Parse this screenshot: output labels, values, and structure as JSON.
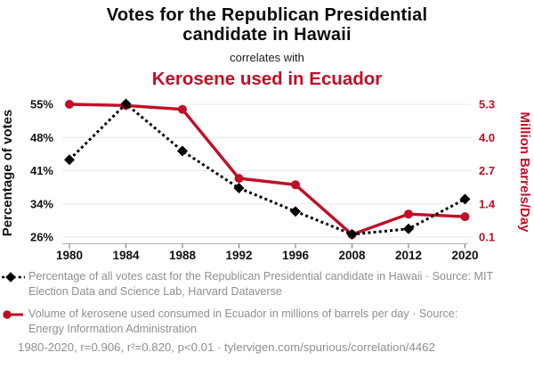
{
  "header": {
    "title": "Votes for the Republican Presidential candidate in Hawaii",
    "subtitle": "correlates with",
    "secondary_title": "Kerosene used in Ecuador"
  },
  "chart_data": {
    "type": "line",
    "categories": [
      "1980",
      "1984",
      "1988",
      "1992",
      "1996",
      "2008",
      "2012",
      "2020"
    ],
    "series": [
      {
        "name": "Republican Presidential votes in Hawaii",
        "axis": "left",
        "color": "#000000",
        "line_style": "dotted",
        "marker": "diamond",
        "values": [
          42.9,
          55.1,
          44.8,
          36.7,
          31.6,
          26.6,
          27.8,
          34.3
        ]
      },
      {
        "name": "Kerosene used in Ecuador",
        "axis": "right",
        "color": "#c10e27",
        "line_style": "solid",
        "marker": "circle",
        "values": [
          5.3,
          5.25,
          5.1,
          2.4,
          2.15,
          0.2,
          1.0,
          0.9
        ]
      }
    ],
    "left_axis": {
      "label": "Percentage of votes",
      "ticks": [
        "55%",
        "48%",
        "41%",
        "34%",
        "26%"
      ],
      "range": [
        26,
        55
      ]
    },
    "right_axis": {
      "label": "Million Barrels/Day",
      "ticks": [
        "5.3",
        "4.0",
        "2.7",
        "1.4",
        "0.1"
      ],
      "range": [
        0.1,
        5.3
      ]
    },
    "grid": "horizontal only",
    "legend_position": "bottom"
  },
  "legend": {
    "items": [
      {
        "marker": "black-diamond-dotted-line",
        "color": "#000000",
        "text": "Percentage of all votes cast for the Republican Presidential candidate in Hawaii · Source: MIT Election Data and Science Lab, Harvard Dataverse"
      },
      {
        "marker": "red-circle-solid-line",
        "color": "#c10e27",
        "text": "Volume of kerosene used consumed in Ecuador in millions of barrels per day · Source: Energy Information Administration"
      }
    ]
  },
  "footer": {
    "text": "1980-2020, r=0.906, r²=0.820, p<0.01 · tylervigen.com/spurious/correlation/4462"
  },
  "colors": {
    "accent_red": "#c10e27",
    "text_black": "#0b0b0b",
    "text_gray": "#8f8f8f",
    "gridline": "#e9e9e9",
    "axis_line": "#b3b3b3"
  }
}
